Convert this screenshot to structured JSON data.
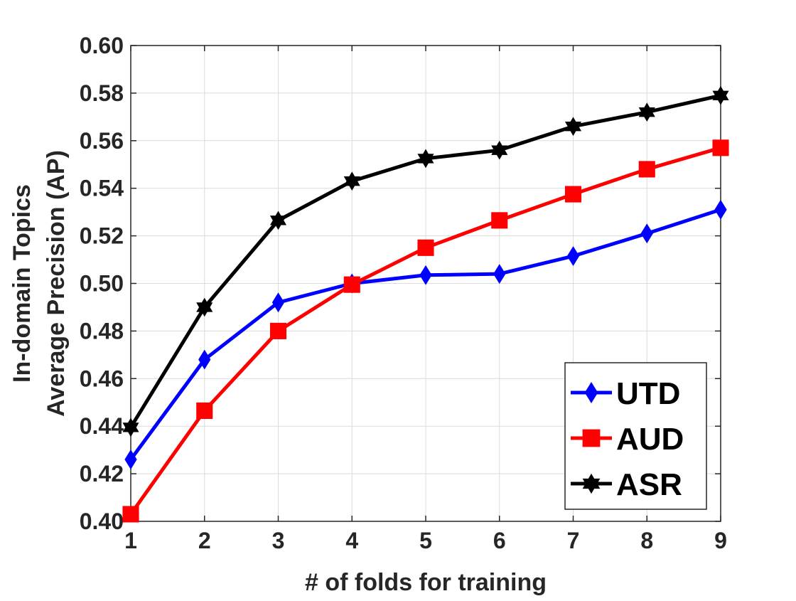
{
  "chart_data": {
    "type": "line",
    "title": "",
    "xlabel": "# of folds for training",
    "ylabel": [
      "In-domain Topics",
      "Average Precision (AP)"
    ],
    "xlim": [
      1,
      9
    ],
    "ylim": [
      0.4,
      0.6
    ],
    "x": [
      1,
      2,
      3,
      4,
      5,
      6,
      7,
      8,
      9
    ],
    "x_ticks": [
      "1",
      "2",
      "3",
      "4",
      "5",
      "6",
      "7",
      "8",
      "9"
    ],
    "y_ticks": [
      {
        "value": 0.4,
        "label": "0.40"
      },
      {
        "value": 0.42,
        "label": "0.42"
      },
      {
        "value": 0.44,
        "label": "0.44"
      },
      {
        "value": 0.46,
        "label": "0.46"
      },
      {
        "value": 0.48,
        "label": "0.48"
      },
      {
        "value": 0.5,
        "label": "0.50"
      },
      {
        "value": 0.52,
        "label": "0.52"
      },
      {
        "value": 0.54,
        "label": "0.54"
      },
      {
        "value": 0.56,
        "label": "0.56"
      },
      {
        "value": 0.58,
        "label": "0.58"
      },
      {
        "value": 0.6,
        "label": "0.60"
      }
    ],
    "grid": true,
    "legend_position": "bottom-right",
    "series": [
      {
        "name": "UTD",
        "color": "#0000ff",
        "marker": "diamond",
        "values": [
          0.426,
          0.468,
          0.492,
          0.5,
          0.5035,
          0.504,
          0.5115,
          0.521,
          0.531
        ]
      },
      {
        "name": "AUD",
        "color": "#ff0000",
        "marker": "square",
        "values": [
          0.403,
          0.4465,
          0.48,
          0.4995,
          0.515,
          0.5265,
          0.5375,
          0.548,
          0.557
        ]
      },
      {
        "name": "ASR",
        "color": "#000000",
        "marker": "hexagram",
        "values": [
          0.4395,
          0.49,
          0.5265,
          0.543,
          0.5525,
          0.556,
          0.566,
          0.572,
          0.579
        ]
      }
    ]
  }
}
